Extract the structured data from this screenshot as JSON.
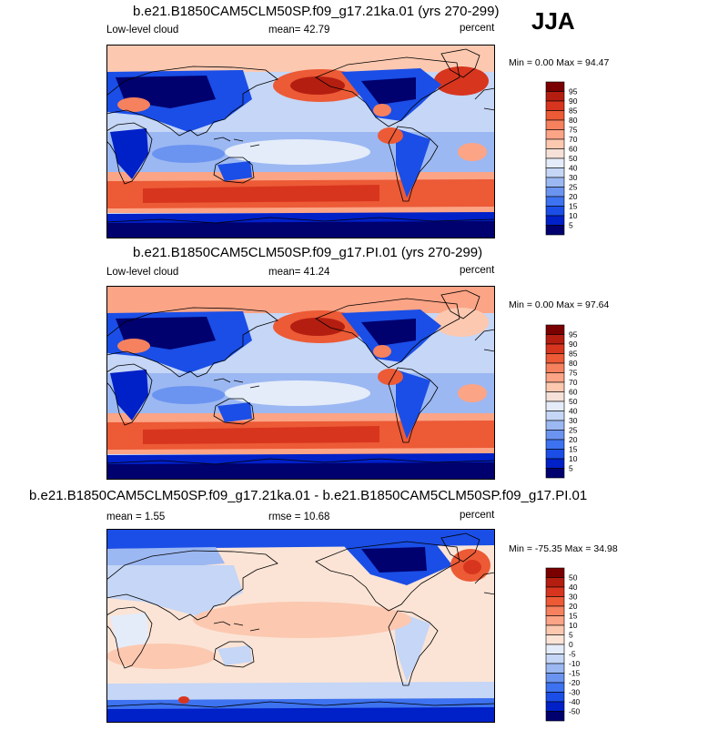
{
  "season": "JJA",
  "palette_full": [
    "#00006e",
    "#0020c8",
    "#1a4ee6",
    "#3d72f0",
    "#6b94f0",
    "#9cb8f2",
    "#c5d6f6",
    "#e4ecfa",
    "#f5e1d8",
    "#fcc8b0",
    "#fba486",
    "#f5815e",
    "#ec5a36",
    "#d8351e",
    "#b41e10",
    "#7a0000"
  ],
  "palette_diff": [
    "#00006e",
    "#0020c8",
    "#1a4ee6",
    "#3d72f0",
    "#6b94f0",
    "#9cb8f2",
    "#c5d6f6",
    "#e4ecfa",
    "#fbe4d6",
    "#fcc8b0",
    "#fba486",
    "#f5815e",
    "#ec5a36",
    "#d8351e",
    "#b41e10",
    "#7a0000"
  ],
  "panels": [
    {
      "title": "b.e21.B1850CAM5CLM50SP.f09_g17.21ka.01 (yrs 270-299)",
      "left_label": "Low-level cloud",
      "mid_label": "mean=  42.79",
      "right_label": "percent",
      "minmax": "Min =   0.00 Max =  94.47",
      "colorbar_labels": [
        "95",
        "90",
        "85",
        "80",
        "75",
        "70",
        "60",
        "50",
        "40",
        "30",
        "25",
        "20",
        "15",
        "10",
        "5"
      ]
    },
    {
      "title": "b.e21.B1850CAM5CLM50SP.f09_g17.PI.01 (yrs 270-299)",
      "left_label": "Low-level cloud",
      "mid_label": "mean=  41.24",
      "right_label": "percent",
      "minmax": "Min =   0.00 Max =  97.64",
      "colorbar_labels": [
        "95",
        "90",
        "85",
        "80",
        "75",
        "70",
        "60",
        "50",
        "40",
        "30",
        "25",
        "20",
        "15",
        "10",
        "5"
      ]
    },
    {
      "title": "b.e21.B1850CAM5CLM50SP.f09_g17.21ka.01 - b.e21.B1850CAM5CLM50SP.f09_g17.PI.01",
      "left_label": "mean =   1.55",
      "mid_label": "rmse =  10.68",
      "right_label": "percent",
      "minmax": "Min = -75.35 Max =  34.98",
      "colorbar_labels": [
        "50",
        "40",
        "30",
        "20",
        "15",
        "10",
        "5",
        "0",
        "-5",
        "-10",
        "-15",
        "-20",
        "-30",
        "-40",
        "-50"
      ]
    }
  ]
}
